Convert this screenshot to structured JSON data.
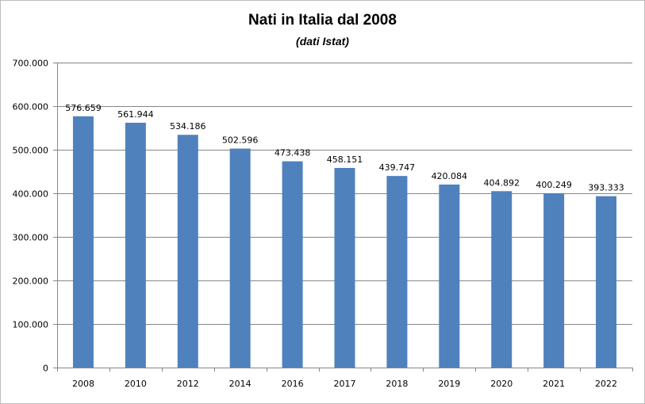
{
  "chart_data": {
    "type": "bar",
    "title": "Nati in Italia dal 2008",
    "subtitle": "(dati Istat)",
    "xlabel": "",
    "ylabel": "",
    "categories": [
      "2008",
      "2010",
      "2012",
      "2014",
      "2016",
      "2017",
      "2018",
      "2019",
      "2020",
      "2021",
      "2022"
    ],
    "values": [
      576659,
      561944,
      534186,
      502596,
      473438,
      458151,
      439747,
      420084,
      404892,
      400249,
      393333
    ],
    "data_labels": [
      "576.659",
      "561.944",
      "534.186",
      "502.596",
      "473.438",
      "458.151",
      "439.747",
      "420.084",
      "404.892",
      "400.249",
      "393.333"
    ],
    "ylim": [
      0,
      700000
    ],
    "yticks": [
      0,
      100000,
      200000,
      300000,
      400000,
      500000,
      600000,
      700000
    ],
    "ytick_labels": [
      "0",
      "100.000",
      "200.000",
      "300.000",
      "400.000",
      "500.000",
      "600.000",
      "700.000"
    ],
    "grid": true,
    "legend": "none",
    "bar_color": "#4f81bd"
  }
}
